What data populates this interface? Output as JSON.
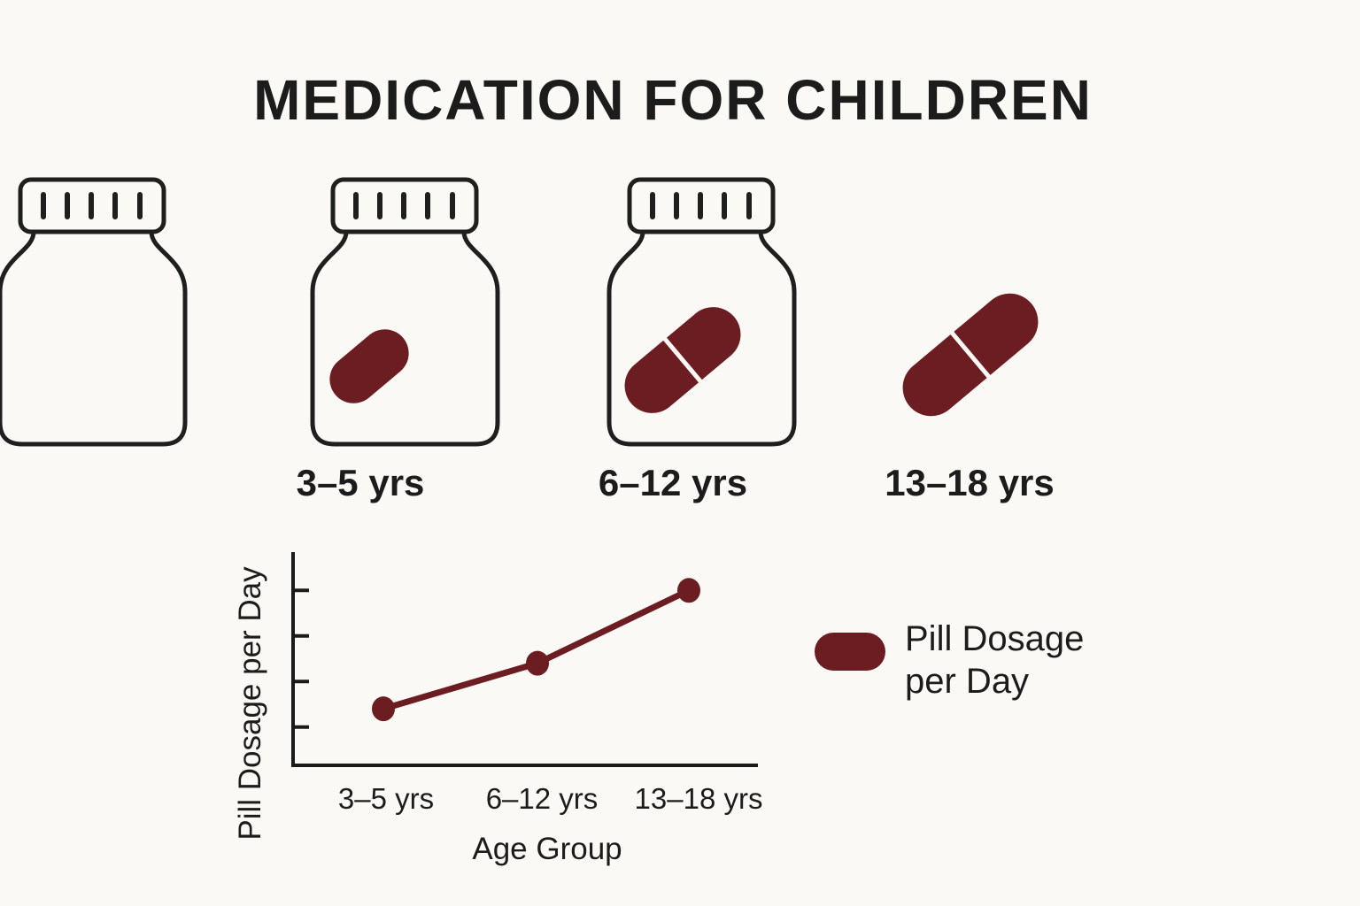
{
  "title": "MEDICATION FOR CHILDREN",
  "colors": {
    "pill": "#6b1d22",
    "outline": "#1f1f1f",
    "background": "#fbf9f5"
  },
  "bottles": [
    {
      "label": "3–5 yrs",
      "pill_size": "small",
      "icon": "pill-bottle-icon"
    },
    {
      "label": "6–12 yrs",
      "pill_size": "medium",
      "icon": "pill-bottle-icon"
    },
    {
      "label": "13–18 yrs",
      "pill_size": "large",
      "icon": "pill-bottle-icon"
    }
  ],
  "chart_data": {
    "type": "line",
    "categories": [
      "3–5 yrs",
      "6–12 yrs",
      "13–18 yrs"
    ],
    "series": [
      {
        "name": "Pill Dosage per Day",
        "values": [
          1.4,
          2.4,
          4.0
        ]
      }
    ],
    "xlabel": "Age Group",
    "ylabel": "Pill Dosage per Day",
    "yticks": [
      1,
      2,
      3,
      4
    ],
    "ytick_labels_shown": false,
    "ylim": [
      0.16,
      4.84
    ],
    "grid": false,
    "legend": {
      "position": "right",
      "label": "Pill Dosage per Day"
    }
  }
}
